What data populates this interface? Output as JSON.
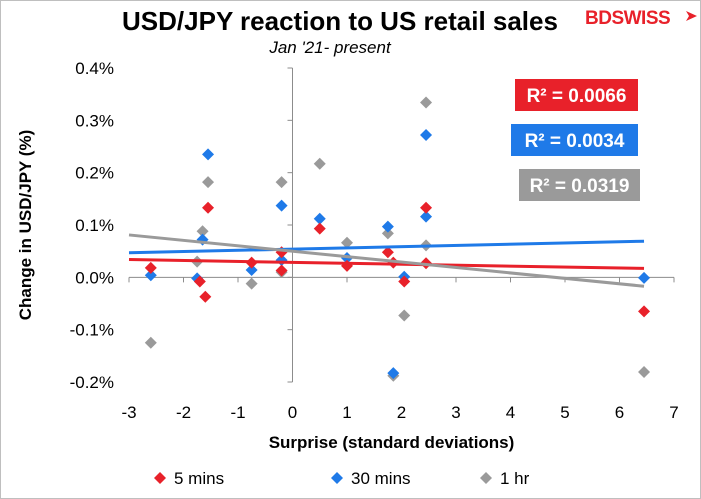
{
  "chart_data": {
    "type": "scatter",
    "title": "USD/JPY reaction to US retail sales",
    "subtitle": "Jan '21- present",
    "xlabel": "Surprise (standard deviations)",
    "ylabel": "Change in USD/JPY  (%)",
    "xlim": [
      -3,
      7
    ],
    "ylim": [
      -0.2,
      0.4
    ],
    "x_ticks": [
      "-3",
      "-2",
      "-1",
      "0",
      "1",
      "2",
      "3",
      "4",
      "5",
      "6",
      "7"
    ],
    "y_ticks": [
      "-0.2%",
      "-0.1%",
      "0.0%",
      "0.1%",
      "0.2%",
      "0.3%",
      "0.4%"
    ],
    "legend_position": "bottom",
    "series": [
      {
        "name": "5 mins",
        "color": "#e8212a",
        "marker": "diamond",
        "points": [
          [
            -2.6,
            0.018
          ],
          [
            -1.7,
            -0.008
          ],
          [
            -1.6,
            -0.037
          ],
          [
            -1.55,
            0.133
          ],
          [
            -0.75,
            0.028
          ],
          [
            -0.2,
            0.048
          ],
          [
            -0.2,
            0.013
          ],
          [
            0.5,
            0.093
          ],
          [
            1.0,
            0.022
          ],
          [
            1.75,
            0.048
          ],
          [
            1.85,
            0.028
          ],
          [
            2.05,
            -0.008
          ],
          [
            2.45,
            0.133
          ],
          [
            2.45,
            0.027
          ],
          [
            6.45,
            -0.065
          ]
        ],
        "trendline": {
          "y_at_xmin": 0.034,
          "y_at_xmax": 0.017,
          "r2_label": "R² = 0.0066"
        }
      },
      {
        "name": "30 mins",
        "color": "#1f7ae8",
        "marker": "diamond",
        "points": [
          [
            -2.6,
            0.004
          ],
          [
            -1.75,
            -0.002
          ],
          [
            -1.65,
            0.072
          ],
          [
            -1.55,
            0.235
          ],
          [
            -0.75,
            0.014
          ],
          [
            -0.2,
            0.137
          ],
          [
            -0.2,
            0.033
          ],
          [
            0.5,
            0.112
          ],
          [
            1.0,
            0.037
          ],
          [
            1.75,
            0.097
          ],
          [
            1.85,
            -0.183
          ],
          [
            2.05,
            0.001
          ],
          [
            2.45,
            0.272
          ],
          [
            2.45,
            0.116
          ],
          [
            6.45,
            -0.001
          ]
        ],
        "trendline": {
          "y_at_xmin": 0.047,
          "y_at_xmax": 0.069,
          "r2_label": "R² = 0.0034"
        }
      },
      {
        "name": "1 hr",
        "color": "#9a9a9a",
        "marker": "diamond",
        "points": [
          [
            -2.6,
            -0.125
          ],
          [
            -1.75,
            0.03
          ],
          [
            -1.65,
            0.088
          ],
          [
            -1.55,
            0.182
          ],
          [
            -0.75,
            -0.012
          ],
          [
            -0.2,
            0.182
          ],
          [
            -0.2,
            0.01
          ],
          [
            0.5,
            0.217
          ],
          [
            1.0,
            0.066
          ],
          [
            1.75,
            0.084
          ],
          [
            1.85,
            -0.188
          ],
          [
            2.05,
            -0.073
          ],
          [
            2.45,
            0.334
          ],
          [
            2.45,
            0.061
          ],
          [
            6.45,
            -0.181
          ]
        ],
        "trendline": {
          "y_at_xmin": 0.081,
          "y_at_xmax": -0.017,
          "r2_label": "R² = 0.0319"
        }
      }
    ]
  },
  "brand": {
    "logo_text": "BDSWISS",
    "color": "#e8212a"
  }
}
